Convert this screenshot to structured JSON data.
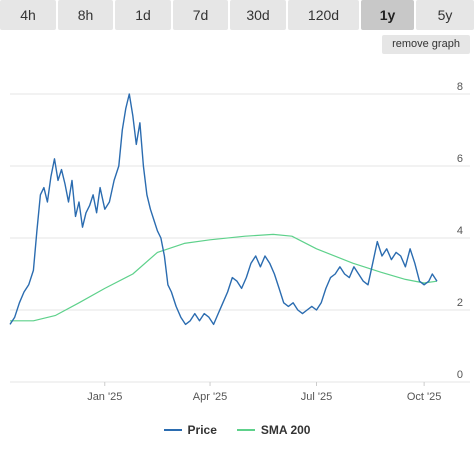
{
  "tabs": [
    {
      "label": "4h",
      "active": false
    },
    {
      "label": "8h",
      "active": false
    },
    {
      "label": "1d",
      "active": false
    },
    {
      "label": "7d",
      "active": false
    },
    {
      "label": "30d",
      "active": false
    },
    {
      "label": "120d",
      "active": false
    },
    {
      "label": "1y",
      "active": true
    },
    {
      "label": "5y",
      "active": false
    }
  ],
  "remove_graph_label": "remove graph",
  "chart_data": {
    "type": "line",
    "title": "",
    "xlabel": "",
    "ylabel": "",
    "ylim": [
      0,
      9
    ],
    "xlim": [
      "2024-10-12",
      "2025-10-12"
    ],
    "y_ticks": [
      0,
      2,
      4,
      6,
      8
    ],
    "x_ticks": [
      {
        "date": "2025-01-01",
        "label": "Jan '25"
      },
      {
        "date": "2025-04-01",
        "label": "Apr '25"
      },
      {
        "date": "2025-07-01",
        "label": "Jul '25"
      },
      {
        "date": "2025-10-01",
        "label": "Oct '25"
      }
    ],
    "grid": "horizontal",
    "legend_position": "bottom",
    "series": [
      {
        "name": "Price",
        "color": "#2b6cb0",
        "points": [
          [
            "2024-10-12",
            1.6
          ],
          [
            "2024-10-16",
            1.8
          ],
          [
            "2024-10-20",
            2.2
          ],
          [
            "2024-10-24",
            2.5
          ],
          [
            "2024-10-28",
            2.7
          ],
          [
            "2024-11-01",
            3.1
          ],
          [
            "2024-11-04",
            4.2
          ],
          [
            "2024-11-07",
            5.2
          ],
          [
            "2024-11-10",
            5.4
          ],
          [
            "2024-11-13",
            5.0
          ],
          [
            "2024-11-16",
            5.7
          ],
          [
            "2024-11-19",
            6.2
          ],
          [
            "2024-11-22",
            5.6
          ],
          [
            "2024-11-25",
            5.9
          ],
          [
            "2024-11-28",
            5.5
          ],
          [
            "2024-12-01",
            5.0
          ],
          [
            "2024-12-04",
            5.6
          ],
          [
            "2024-12-07",
            4.6
          ],
          [
            "2024-12-10",
            5.0
          ],
          [
            "2024-12-13",
            4.3
          ],
          [
            "2024-12-16",
            4.7
          ],
          [
            "2024-12-19",
            4.9
          ],
          [
            "2024-12-22",
            5.2
          ],
          [
            "2024-12-25",
            4.7
          ],
          [
            "2024-12-28",
            5.4
          ],
          [
            "2025-01-01",
            4.8
          ],
          [
            "2025-01-05",
            5.0
          ],
          [
            "2025-01-09",
            5.6
          ],
          [
            "2025-01-13",
            6.0
          ],
          [
            "2025-01-16",
            7.0
          ],
          [
            "2025-01-19",
            7.6
          ],
          [
            "2025-01-22",
            8.0
          ],
          [
            "2025-01-25",
            7.4
          ],
          [
            "2025-01-28",
            6.6
          ],
          [
            "2025-01-31",
            7.2
          ],
          [
            "2025-02-03",
            6.0
          ],
          [
            "2025-02-06",
            5.2
          ],
          [
            "2025-02-09",
            4.8
          ],
          [
            "2025-02-12",
            4.5
          ],
          [
            "2025-02-15",
            4.2
          ],
          [
            "2025-02-18",
            4.0
          ],
          [
            "2025-02-21",
            3.5
          ],
          [
            "2025-02-24",
            2.7
          ],
          [
            "2025-02-27",
            2.5
          ],
          [
            "2025-03-03",
            2.1
          ],
          [
            "2025-03-07",
            1.8
          ],
          [
            "2025-03-11",
            1.6
          ],
          [
            "2025-03-15",
            1.7
          ],
          [
            "2025-03-19",
            1.9
          ],
          [
            "2025-03-23",
            1.7
          ],
          [
            "2025-03-27",
            1.9
          ],
          [
            "2025-03-31",
            1.8
          ],
          [
            "2025-04-04",
            1.6
          ],
          [
            "2025-04-08",
            1.9
          ],
          [
            "2025-04-12",
            2.2
          ],
          [
            "2025-04-16",
            2.5
          ],
          [
            "2025-04-20",
            2.9
          ],
          [
            "2025-04-24",
            2.8
          ],
          [
            "2025-04-28",
            2.6
          ],
          [
            "2025-05-02",
            2.9
          ],
          [
            "2025-05-06",
            3.3
          ],
          [
            "2025-05-10",
            3.5
          ],
          [
            "2025-05-14",
            3.2
          ],
          [
            "2025-05-18",
            3.5
          ],
          [
            "2025-05-22",
            3.3
          ],
          [
            "2025-05-26",
            3.0
          ],
          [
            "2025-05-30",
            2.6
          ],
          [
            "2025-06-03",
            2.2
          ],
          [
            "2025-06-07",
            2.1
          ],
          [
            "2025-06-11",
            2.2
          ],
          [
            "2025-06-15",
            2.0
          ],
          [
            "2025-06-19",
            1.9
          ],
          [
            "2025-06-23",
            2.0
          ],
          [
            "2025-06-27",
            2.1
          ],
          [
            "2025-07-01",
            2.0
          ],
          [
            "2025-07-05",
            2.2
          ],
          [
            "2025-07-09",
            2.6
          ],
          [
            "2025-07-13",
            2.9
          ],
          [
            "2025-07-17",
            3.0
          ],
          [
            "2025-07-21",
            3.2
          ],
          [
            "2025-07-25",
            3.0
          ],
          [
            "2025-07-29",
            2.9
          ],
          [
            "2025-08-02",
            3.2
          ],
          [
            "2025-08-06",
            3.0
          ],
          [
            "2025-08-10",
            2.8
          ],
          [
            "2025-08-14",
            2.7
          ],
          [
            "2025-08-18",
            3.3
          ],
          [
            "2025-08-22",
            3.9
          ],
          [
            "2025-08-26",
            3.5
          ],
          [
            "2025-08-30",
            3.7
          ],
          [
            "2025-09-03",
            3.4
          ],
          [
            "2025-09-07",
            3.6
          ],
          [
            "2025-09-11",
            3.5
          ],
          [
            "2025-09-15",
            3.2
          ],
          [
            "2025-09-19",
            3.7
          ],
          [
            "2025-09-23",
            3.3
          ],
          [
            "2025-09-27",
            2.8
          ],
          [
            "2025-10-01",
            2.7
          ],
          [
            "2025-10-05",
            2.8
          ],
          [
            "2025-10-08",
            3.0
          ],
          [
            "2025-10-12",
            2.8
          ]
        ]
      },
      {
        "name": "SMA 200",
        "color": "#5ed18b",
        "points": [
          [
            "2024-10-12",
            1.7
          ],
          [
            "2024-11-01",
            1.7
          ],
          [
            "2024-11-20",
            1.85
          ],
          [
            "2024-12-10",
            2.2
          ],
          [
            "2025-01-01",
            2.6
          ],
          [
            "2025-01-25",
            3.0
          ],
          [
            "2025-02-15",
            3.6
          ],
          [
            "2025-03-10",
            3.85
          ],
          [
            "2025-04-01",
            3.95
          ],
          [
            "2025-05-01",
            4.05
          ],
          [
            "2025-05-25",
            4.1
          ],
          [
            "2025-06-10",
            4.05
          ],
          [
            "2025-07-01",
            3.7
          ],
          [
            "2025-08-01",
            3.3
          ],
          [
            "2025-08-25",
            3.05
          ],
          [
            "2025-09-15",
            2.85
          ],
          [
            "2025-10-01",
            2.75
          ],
          [
            "2025-10-12",
            2.8
          ]
        ]
      }
    ]
  }
}
